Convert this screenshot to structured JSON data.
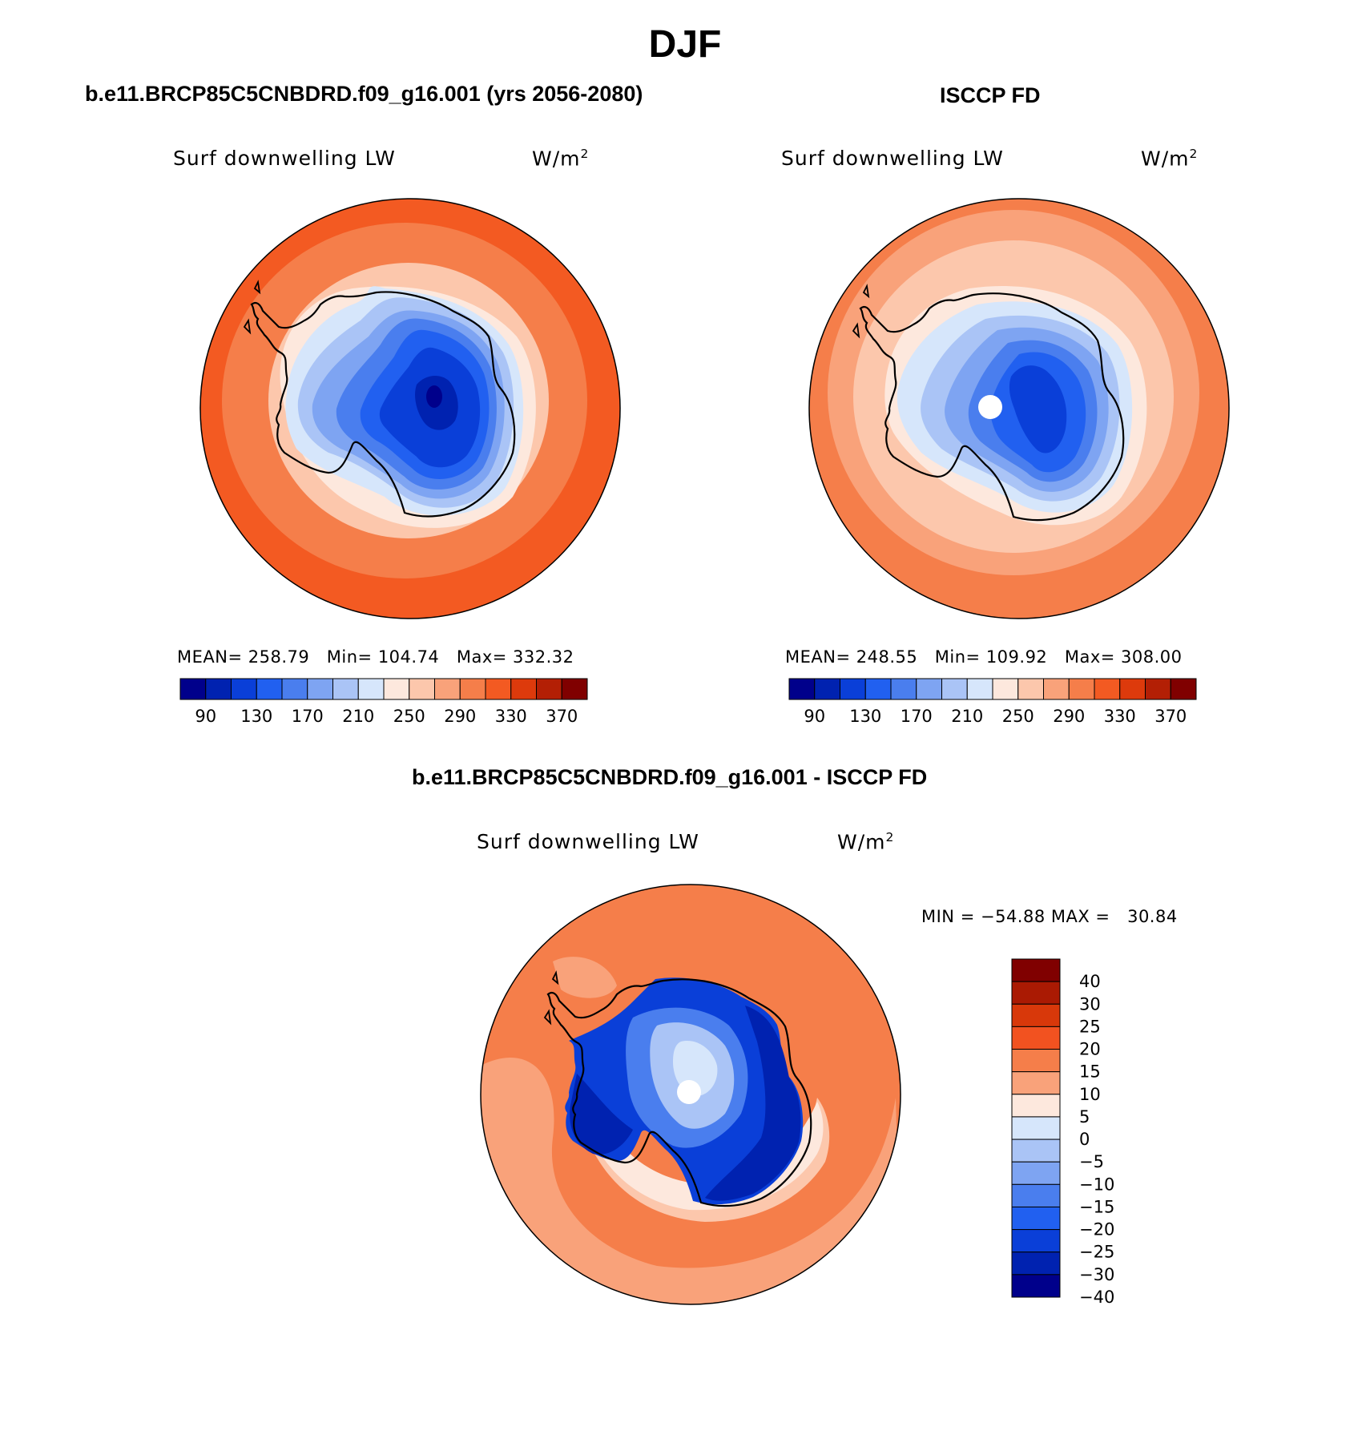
{
  "figure": {
    "title": "DJF"
  },
  "panels": [
    {
      "title": "b.e11.BRCP85C5CNBDRD.f09_g16.001 (yrs 2056-2080)",
      "variable": "Surf downwelling LW",
      "units_base": "W/m",
      "units_exp": "2",
      "stats": {
        "mean_label": "MEAN=",
        "mean": "258.79",
        "min_label": "Min=",
        "min": "104.74",
        "max_label": "Max=",
        "max": "332.32"
      }
    },
    {
      "title": "ISCCP FD",
      "variable": "Surf downwelling LW",
      "units_base": "W/m",
      "units_exp": "2",
      "stats": {
        "mean_label": "MEAN=",
        "mean": "248.55",
        "min_label": "Min=",
        "min": "109.92",
        "max_label": "Max=",
        "max": "308.00"
      }
    },
    {
      "title": "b.e11.BRCP85C5CNBDRD.f09_g16.001 - ISCCP FD",
      "variable": "Surf downwelling LW",
      "units_base": "W/m",
      "units_exp": "2",
      "stats": {
        "min_label": "MIN =",
        "min": "−54.88",
        "max_label": "MAX =",
        "max": "30.84"
      }
    }
  ],
  "colorbars": {
    "horizontal": {
      "colors": [
        "#00008b",
        "#0022b0",
        "#0a3fd8",
        "#2160f0",
        "#4a7eee",
        "#7ea4f2",
        "#aac4f6",
        "#d6e6fb",
        "#fde8dd",
        "#fcc7ac",
        "#f9a27a",
        "#f57e4a",
        "#f35a22",
        "#dd3a0c",
        "#b31f05",
        "#800000"
      ],
      "labels": [
        "90",
        "130",
        "170",
        "210",
        "250",
        "290",
        "330",
        "370"
      ]
    },
    "vertical": {
      "colors_top_to_bottom": [
        "#800000",
        "#aa1a03",
        "#d8380a",
        "#f25220",
        "#f57e4a",
        "#f9a27a",
        "#fde8dd",
        "#d6e6fb",
        "#aac4f6",
        "#7ea4f2",
        "#4a7eee",
        "#2160f0",
        "#0a3fd8",
        "#0022b0",
        "#00008b"
      ],
      "labels": [
        "40",
        "30",
        "25",
        "20",
        "15",
        "10",
        "5",
        "0",
        "−5",
        "−10",
        "−15",
        "−20",
        "−25",
        "−30",
        "−40"
      ]
    }
  },
  "map_colors": {
    "warm_outer": "#f35a22",
    "warm_mid": "#f57e4a",
    "warm_inner": "#f9a27a",
    "warm_light": "#fcc7ac",
    "cream": "#fde8dd",
    "ice_1": "#d6e6fb",
    "ice_2": "#aac4f6",
    "ice_3": "#7ea4f2",
    "ice_4": "#4a7eee",
    "ice_5": "#2160f0",
    "ice_6": "#0a3fd8",
    "ice_7": "#0022b0",
    "ice_8": "#00008b"
  }
}
